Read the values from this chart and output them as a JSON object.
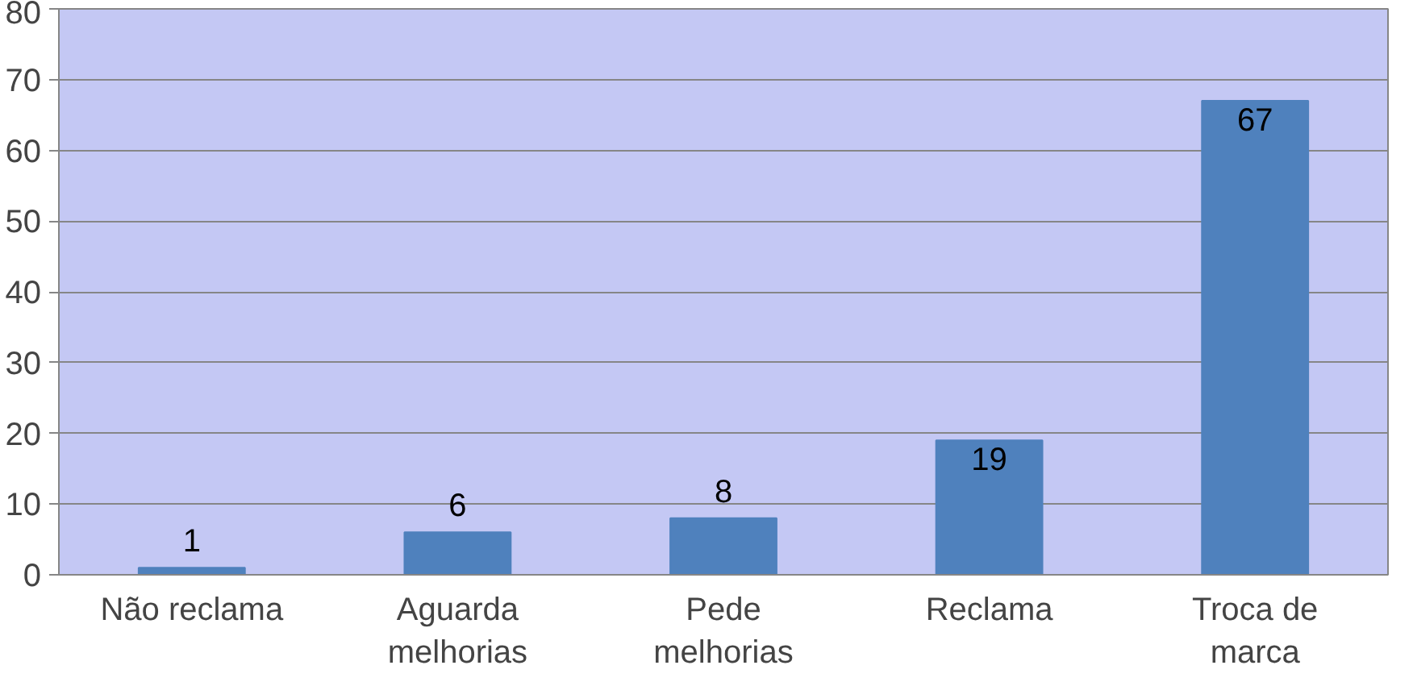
{
  "chart_data": {
    "type": "bar",
    "categories": [
      "Não reclama",
      "Aguarda melhorias",
      "Pede melhorias",
      "Reclama",
      "Troca de marca"
    ],
    "values": [
      1,
      6,
      8,
      19,
      67
    ],
    "color": "#4f81bd",
    "ylim": [
      0,
      80
    ],
    "yticks": [
      0,
      10,
      20,
      30,
      40,
      50,
      60,
      70,
      80
    ],
    "grid": "y",
    "data_labels": true
  }
}
